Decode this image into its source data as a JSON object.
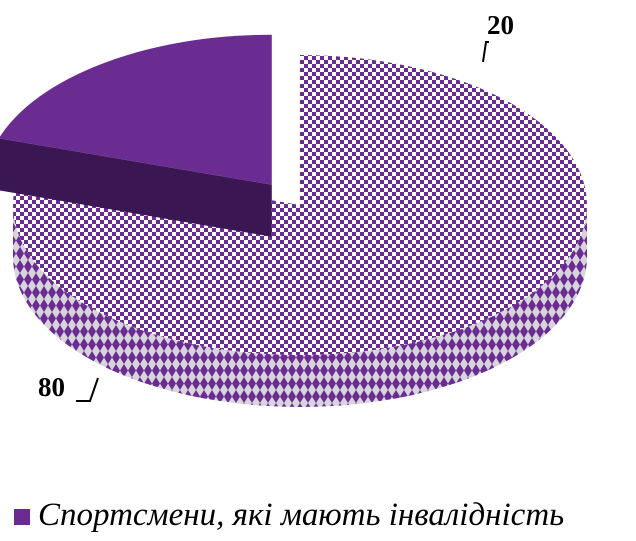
{
  "chart_data": {
    "type": "pie",
    "title": "",
    "three_d": true,
    "exploded_slice": 1,
    "slices": [
      {
        "label": "",
        "value": 80,
        "data_label": "80",
        "fill": "checker",
        "color": "#6a2c91",
        "pattern_background": "#ffffff"
      },
      {
        "label": "Спортсмени, які мають інвалідність",
        "value": 20,
        "data_label": "20",
        "fill": "solid",
        "color": "#6a2c91",
        "side_color": "#3a1652"
      }
    ],
    "legend": {
      "position": "bottom",
      "entries": [
        "Спортсмени, які мають інвалідність"
      ]
    }
  }
}
